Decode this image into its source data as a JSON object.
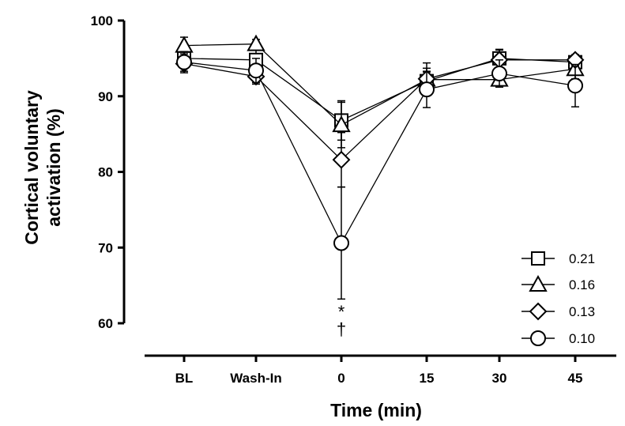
{
  "chart_data": {
    "type": "line",
    "title": "",
    "xlabel": "Time (min)",
    "ylabel_line1": "Cortical voluntary",
    "ylabel_line2": "activation (%)",
    "categories": [
      "BL",
      "Wash-In",
      "0",
      "15",
      "30",
      "45"
    ],
    "ylim": [
      60,
      100
    ],
    "yticks": [
      "60",
      "70",
      "80",
      "90",
      "100"
    ],
    "grid": false,
    "legend_position": "bottom-right",
    "series": [
      {
        "name": "0.21",
        "marker": "square",
        "values": [
          95.0,
          94.8,
          86.8,
          92.0,
          95.0,
          94.5
        ],
        "errors": [
          1.0,
          1.4,
          2.6,
          1.2,
          1.2,
          0.9
        ]
      },
      {
        "name": "0.16",
        "marker": "triangle",
        "values": [
          96.7,
          96.9,
          86.2,
          92.2,
          92.2,
          93.6
        ],
        "errors": [
          1.1,
          0.6,
          3.0,
          1.5,
          1.0,
          1.3
        ]
      },
      {
        "name": "0.13",
        "marker": "diamond",
        "values": [
          94.3,
          92.6,
          81.6,
          92.3,
          94.8,
          94.8
        ],
        "errors": [
          1.0,
          1.0,
          3.6,
          2.1,
          1.3,
          0.7
        ]
      },
      {
        "name": "0.10",
        "marker": "circle",
        "values": [
          94.5,
          93.4,
          70.6,
          90.9,
          93.0,
          91.4
        ],
        "errors": [
          1.4,
          1.6,
          7.4,
          2.4,
          1.8,
          2.8
        ]
      }
    ],
    "annotations": [
      {
        "category": "0",
        "text": "*"
      },
      {
        "category": "0",
        "text": "†"
      }
    ]
  }
}
